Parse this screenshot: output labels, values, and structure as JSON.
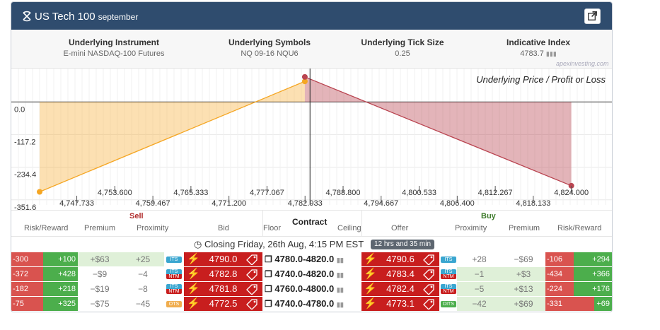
{
  "header": {
    "title": "US Tech 100",
    "subtitle": "september",
    "logo_icon": "spiral-logo-icon",
    "external_icon": "external-link-icon"
  },
  "info": [
    {
      "label": "Underlying Instrument",
      "value": "E-mini NASDAQ-100 Futures"
    },
    {
      "label": "Underlying Symbols",
      "value": "NQ 09-16 NQU6"
    },
    {
      "label": "Underlying Tick Size",
      "value": "0.25"
    },
    {
      "label": "Indicative Index",
      "value": "4783.7"
    }
  ],
  "watermark": "apexinvesting.com",
  "chart_data": {
    "type": "area",
    "title": "Underlying Price / Profit or Loss",
    "y_ticks": [
      "0.0",
      "-117.2",
      "-234.4",
      "-351.6"
    ],
    "x_ticks_upper": [
      "4,753.600",
      "4,765.333",
      "4,777.067",
      "4,788.800",
      "4,800.533",
      "4,812.267",
      "4,824.000"
    ],
    "x_ticks_lower": [
      "4,747.733",
      "4,759.467",
      "4,771.200",
      "4,782.933",
      "4,794.667",
      "4,806.400",
      "4,818.133"
    ],
    "xlim": [
      4742,
      4826
    ],
    "ylim": [
      -370,
      120
    ],
    "current_price": 4783.7,
    "series": [
      {
        "color": "#f5a623",
        "points": [
          [
            4742,
            -323
          ],
          [
            4782.9,
            74
          ]
        ]
      },
      {
        "color": "#b94450",
        "points": [
          [
            4782.9,
            90
          ],
          [
            4824,
            -301
          ]
        ]
      }
    ]
  },
  "table_head": {
    "sell": "Sell",
    "buy": "Buy",
    "contract": "Contract",
    "cols": [
      "Risk/Reward",
      "Premium",
      "Proximity",
      "Bid",
      "Floor",
      "Ceiling",
      "Offer",
      "Proximity",
      "Premium",
      "Risk/Reward"
    ]
  },
  "closing": {
    "text": "Closing Friday, 26th Aug, 4:15 PM EST",
    "badge": "12 hrs and 35 min",
    "icon": "clock-icon"
  },
  "rows": [
    {
      "sell_risk": "-300",
      "sell_reward": "+100",
      "sell_prem": "+$63",
      "sell_prox": "+25",
      "sell_tag": "ITS",
      "bid": "4790.0",
      "contract": "4780.0-4820.0",
      "offer": "4790.6",
      "buy_tag": "ITS",
      "buy_prox": "+28",
      "buy_prem": "−$69",
      "buy_risk": "-106",
      "buy_reward": "+294"
    },
    {
      "sell_risk": "-372",
      "sell_reward": "+428",
      "sell_prem": "−$9",
      "sell_prox": "−4",
      "sell_tag": "ITS NTM",
      "bid": "4782.8",
      "contract": "4740.0-4820.0",
      "offer": "4783.4",
      "buy_tag": "ITS NTM",
      "buy_prox": "−1",
      "buy_prem": "+$3",
      "buy_risk": "-434",
      "buy_reward": "+366"
    },
    {
      "sell_risk": "-182",
      "sell_reward": "+218",
      "sell_prem": "−$19",
      "sell_prox": "−8",
      "sell_tag": "ITS NTM",
      "bid": "4781.8",
      "contract": "4760.0-4800.0",
      "offer": "4782.4",
      "buy_tag": "ITS NTM",
      "buy_prox": "−5",
      "buy_prem": "+$13",
      "buy_risk": "-224",
      "buy_reward": "+176"
    },
    {
      "sell_risk": "-75",
      "sell_reward": "+325",
      "sell_prem": "−$75",
      "sell_prox": "−45",
      "sell_tag": "OTS",
      "bid": "4772.5",
      "contract": "4740.0-4780.0",
      "offer": "4773.1",
      "buy_tag": "DITS",
      "buy_prox": "−42",
      "buy_prem": "+$69",
      "buy_risk": "-331",
      "buy_reward": "+69"
    }
  ],
  "colors": {
    "header": "#2f4c6e",
    "sell_price": "#c81e1e",
    "negative": "#d9534f",
    "positive": "#4cae4c",
    "sell_text": "#b02a2a",
    "buy_text": "#3c7a2a"
  }
}
